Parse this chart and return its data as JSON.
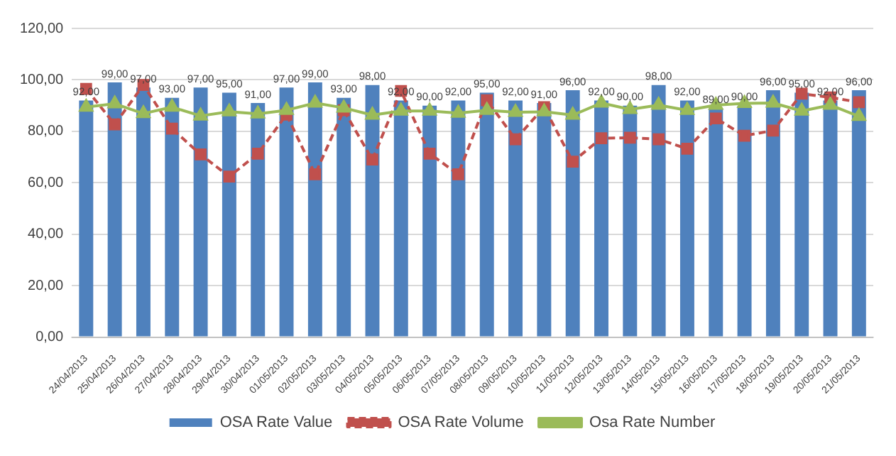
{
  "chart_data": {
    "type": "bar",
    "categories": [
      "24/04/2013",
      "25/04/2013",
      "26/04/2013",
      "27/04/2013",
      "28/04/2013",
      "29/04/2013",
      "30/04/2013",
      "01/05/2013",
      "02/05/2013",
      "03/05/2013",
      "04/05/2013",
      "05/05/2013",
      "06/05/2013",
      "07/05/2013",
      "08/05/2013",
      "09/05/2013",
      "10/05/2013",
      "11/05/2013",
      "12/05/2013",
      "13/05/2013",
      "14/05/2013",
      "15/05/2013",
      "16/05/2013",
      "17/05/2013",
      "18/05/2013",
      "19/05/2013",
      "20/05/2013",
      "21/05/2013"
    ],
    "series": [
      {
        "name": "OSA Rate Value",
        "color": "#4f81bd",
        "values": [
          92,
          99,
          97,
          93,
          97,
          95,
          91,
          97,
          99,
          93,
          98,
          92,
          90,
          92,
          95,
          92,
          91,
          96,
          92,
          90,
          98,
          92,
          89,
          90,
          96,
          95,
          92,
          96
        ],
        "value_labels": [
          "92,00",
          "99,00",
          "97,00",
          "93,00",
          "97,00",
          "95,00",
          "91,00",
          "97,00",
          "99,00",
          "93,00",
          "98,00",
          "92,00",
          "90,00",
          "92,00",
          "95,00",
          "92,00",
          "91,00",
          "96,00",
          "92,00",
          "90,00",
          "98,00",
          "92,00",
          "89,00",
          "90,00",
          "96,00",
          "95,00",
          "92,00",
          "96,00"
        ]
      },
      {
        "name": "OSA Rate Volume",
        "type": "line",
        "color": "#c0504d",
        "marker": "square",
        "line_style": "dashed",
        "values": [
          96.5,
          82.7,
          98,
          81,
          71,
          62.4,
          71.3,
          86.5,
          63.3,
          88.2,
          69,
          95.7,
          71.3,
          63.3,
          92.1,
          76.9,
          89.4,
          68.2,
          77.3,
          77.5,
          76.9,
          73.2,
          85,
          78.3,
          80.3,
          94.6,
          93.2,
          91.3
        ]
      },
      {
        "name": "Osa Rate Number",
        "type": "line",
        "color": "#9bbb59",
        "marker": "triangle",
        "line_style": "solid",
        "values": [
          89.4,
          90.7,
          86.9,
          89.4,
          86,
          87.6,
          86.8,
          88.2,
          91,
          89.1,
          86.3,
          87.9,
          87.9,
          87.1,
          88.2,
          87.4,
          87.6,
          86.3,
          91,
          88.5,
          90.2,
          88.2,
          90.2,
          90.9,
          91,
          87.9,
          90.2,
          85.8
        ]
      }
    ],
    "ylim": [
      0,
      120
    ],
    "yticks": [
      {
        "value": 0,
        "label": "0,00"
      },
      {
        "value": 20,
        "label": "20,00"
      },
      {
        "value": 40,
        "label": "40,00"
      },
      {
        "value": 60,
        "label": "60,00"
      },
      {
        "value": 80,
        "label": "80,00"
      },
      {
        "value": 100,
        "label": "100,00"
      },
      {
        "value": 120,
        "label": "120,00"
      }
    ],
    "grid": "y",
    "legend": "bottom"
  }
}
